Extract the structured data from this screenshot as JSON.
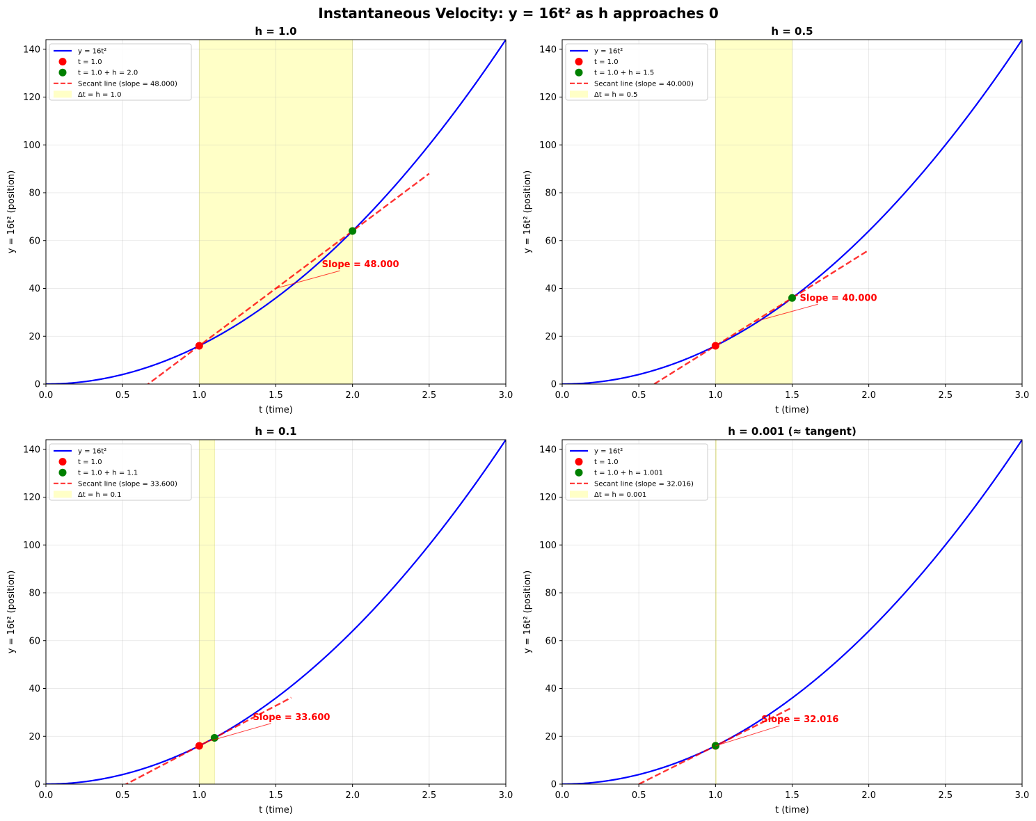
{
  "figure": {
    "title": "Instantaneous Velocity: y = 16t² as h approaches 0"
  },
  "colors": {
    "curve": "#0000ff",
    "start_point": "#ff0000",
    "end_point": "#008000",
    "secant": "#ff0000",
    "interval_fill": "#ffff99",
    "annotation": "#ff0000",
    "grid": "#b0b0b0"
  },
  "chart_data": [
    {
      "type": "line",
      "title": "h = 1.0",
      "xlabel": "t (time)",
      "ylabel": "y = 16t² (position)",
      "xlim": [
        0,
        3
      ],
      "ylim": [
        0,
        144
      ],
      "xticks": [
        "0.0",
        "0.5",
        "1.0",
        "1.5",
        "2.0",
        "2.5",
        "3.0"
      ],
      "yticks": [
        "0",
        "20",
        "40",
        "60",
        "80",
        "100",
        "120",
        "140"
      ],
      "grid": true,
      "legend_position": "top-left",
      "curve": {
        "name": "y = 16t²",
        "function": "16*t^2",
        "t_range": [
          0,
          3
        ]
      },
      "start_point": {
        "name": "t = 1.0",
        "t": 1.0,
        "y": 16
      },
      "end_point": {
        "name": "t = 1.0 + h = 2.0",
        "t": 2.0,
        "y": 64
      },
      "secant": {
        "name": "Secant line (slope = 48.000)",
        "slope": 48.0,
        "t_range": [
          0.5,
          2.5
        ]
      },
      "interval": {
        "name": "Δt = h = 1.0",
        "t_range": [
          1.0,
          2.0
        ]
      },
      "annotation": {
        "text": "Slope = 48.000",
        "text_at": [
          1.8,
          50
        ],
        "arrow_to": [
          1.5,
          40
        ]
      }
    },
    {
      "type": "line",
      "title": "h = 0.5",
      "xlabel": "t (time)",
      "ylabel": "y = 16t² (position)",
      "xlim": [
        0,
        3
      ],
      "ylim": [
        0,
        144
      ],
      "xticks": [
        "0.0",
        "0.5",
        "1.0",
        "1.5",
        "2.0",
        "2.5",
        "3.0"
      ],
      "yticks": [
        "0",
        "20",
        "40",
        "60",
        "80",
        "100",
        "120",
        "140"
      ],
      "grid": true,
      "legend_position": "top-left",
      "curve": {
        "name": "y = 16t²",
        "function": "16*t^2",
        "t_range": [
          0,
          3
        ]
      },
      "start_point": {
        "name": "t = 1.0",
        "t": 1.0,
        "y": 16
      },
      "end_point": {
        "name": "t = 1.0 + h = 1.5",
        "t": 1.5,
        "y": 36
      },
      "secant": {
        "name": "Secant line (slope = 40.000)",
        "slope": 40.0,
        "t_range": [
          0.5,
          2.0
        ]
      },
      "interval": {
        "name": "Δt = h = 0.5",
        "t_range": [
          1.0,
          1.5
        ]
      },
      "annotation": {
        "text": "Slope = 40.000",
        "text_at": [
          1.55,
          36
        ],
        "arrow_to": [
          1.25,
          26
        ]
      }
    },
    {
      "type": "line",
      "title": "h = 0.1",
      "xlabel": "t (time)",
      "ylabel": "y = 16t² (position)",
      "xlim": [
        0,
        3
      ],
      "ylim": [
        0,
        144
      ],
      "xticks": [
        "0.0",
        "0.5",
        "1.0",
        "1.5",
        "2.0",
        "2.5",
        "3.0"
      ],
      "yticks": [
        "0",
        "20",
        "40",
        "60",
        "80",
        "100",
        "120",
        "140"
      ],
      "grid": true,
      "legend_position": "top-left",
      "curve": {
        "name": "y = 16t²",
        "function": "16*t^2",
        "t_range": [
          0,
          3
        ]
      },
      "start_point": {
        "name": "t = 1.0",
        "t": 1.0,
        "y": 16
      },
      "end_point": {
        "name": "t = 1.0 + h = 1.1",
        "t": 1.1,
        "y": 19.36
      },
      "secant": {
        "name": "Secant line (slope = 33.600)",
        "slope": 33.6,
        "t_range": [
          0.5,
          1.6
        ]
      },
      "interval": {
        "name": "Δt = h = 0.1",
        "t_range": [
          1.0,
          1.1
        ]
      },
      "annotation": {
        "text": "Slope = 33.600",
        "text_at": [
          1.35,
          28
        ],
        "arrow_to": [
          1.05,
          17.7
        ]
      }
    },
    {
      "type": "line",
      "title": "h = 0.001 (≈ tangent)",
      "xlabel": "t (time)",
      "ylabel": "y = 16t² (position)",
      "xlim": [
        0,
        3
      ],
      "ylim": [
        0,
        144
      ],
      "xticks": [
        "0.0",
        "0.5",
        "1.0",
        "1.5",
        "2.0",
        "2.5",
        "3.0"
      ],
      "yticks": [
        "0",
        "20",
        "40",
        "60",
        "80",
        "100",
        "120",
        "140"
      ],
      "grid": true,
      "legend_position": "top-left",
      "curve": {
        "name": "y = 16t²",
        "function": "16*t^2",
        "t_range": [
          0,
          3
        ]
      },
      "start_point": {
        "name": "t = 1.0",
        "t": 1.0,
        "y": 16
      },
      "end_point": {
        "name": "t = 1.0 + h = 1.001",
        "t": 1.001,
        "y": 16.032
      },
      "secant": {
        "name": "Secant line (slope = 32.016)",
        "slope": 32.016,
        "t_range": [
          0.5,
          1.5
        ]
      },
      "interval": {
        "name": "Δt = h = 0.001",
        "t_range": [
          1.0,
          1.001
        ]
      },
      "annotation": {
        "text": "Slope = 32.016",
        "text_at": [
          1.3,
          27
        ],
        "arrow_to": [
          1.0,
          16
        ]
      }
    }
  ]
}
